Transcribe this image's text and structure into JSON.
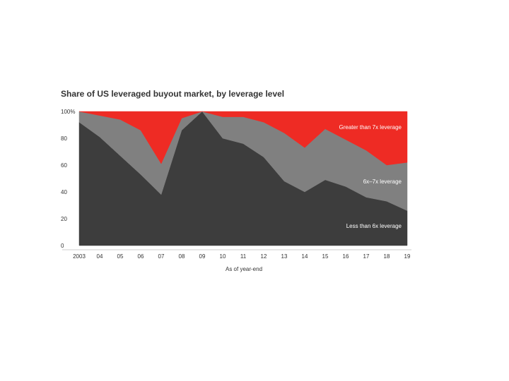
{
  "chart_data": {
    "type": "area",
    "stacked": true,
    "title": "Share of US leveraged buyout market, by leverage level",
    "xlabel": "As of year-end",
    "ylabel": "",
    "ylim": [
      0,
      100
    ],
    "y_ticks": [
      "0",
      "20",
      "40",
      "60",
      "80",
      "100%"
    ],
    "categories": [
      "2003",
      "04",
      "05",
      "06",
      "07",
      "08",
      "09",
      "10",
      "11",
      "12",
      "13",
      "14",
      "15",
      "16",
      "17",
      "18",
      "19"
    ],
    "series": [
      {
        "name": "Less than 6x leverage",
        "color": "#3d3d3d",
        "values": [
          92,
          81,
          67,
          53,
          38,
          86,
          100,
          80,
          76,
          66,
          48,
          40,
          49,
          44,
          36,
          33,
          26
        ]
      },
      {
        "name": "6x–7x leverage",
        "color": "#808080",
        "values": [
          8,
          16,
          27,
          33,
          23,
          9,
          0,
          16,
          20,
          26,
          36,
          33,
          38,
          35,
          35,
          27,
          36
        ]
      },
      {
        "name": "Greater than 7x leverage",
        "color": "#ee2b24",
        "values": [
          0,
          3,
          6,
          14,
          39,
          5,
          0,
          4,
          4,
          8,
          16,
          27,
          13,
          21,
          29,
          40,
          38
        ]
      }
    ],
    "grid": false,
    "legend": "inline labels"
  }
}
